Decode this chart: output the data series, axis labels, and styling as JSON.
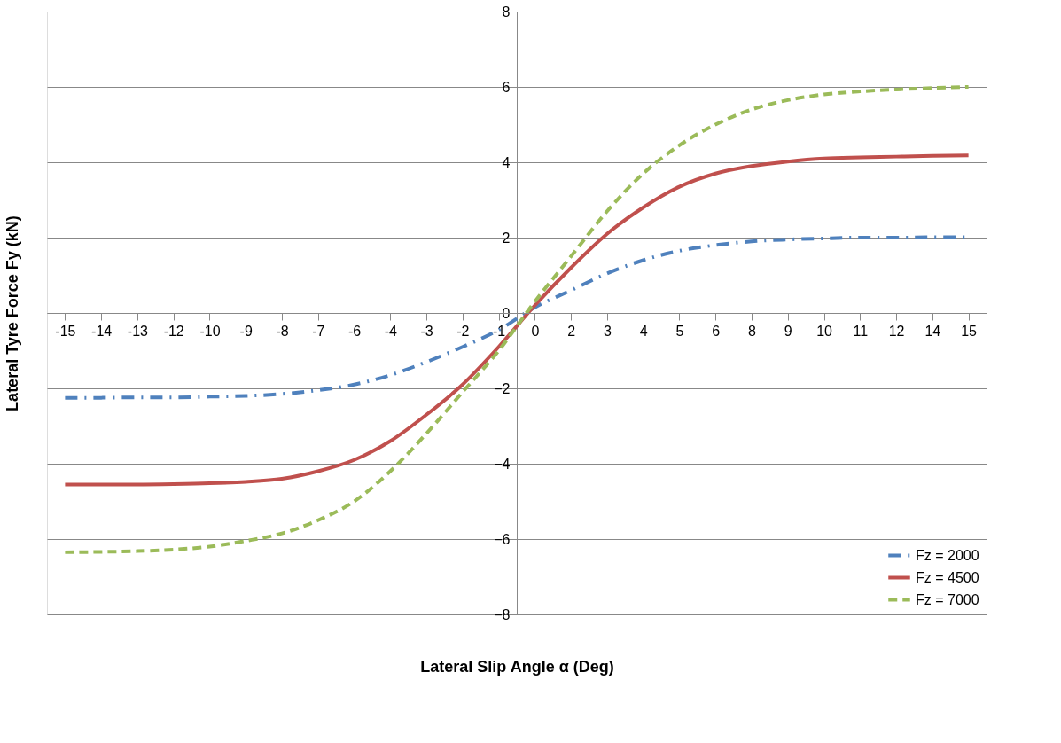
{
  "chart_data": {
    "type": "line",
    "xlabel": "Lateral Slip Angle α (Deg)",
    "ylabel": "Lateral Tyre Force Fy (kN)",
    "categories": [
      "-15",
      "-14",
      "-13",
      "-12",
      "-10",
      "-9",
      "-8",
      "-7",
      "-6",
      "-4",
      "-3",
      "-2",
      "-1",
      "0",
      "2",
      "3",
      "4",
      "5",
      "6",
      "8",
      "9",
      "10",
      "11",
      "12",
      "14",
      "15"
    ],
    "series": [
      {
        "name": "Fz = 2000",
        "color": "#4f81bd",
        "line_style": "dashdot",
        "values": [
          -2.25,
          -2.25,
          -2.24,
          -2.24,
          -2.22,
          -2.2,
          -2.15,
          -2.05,
          -1.9,
          -1.65,
          -1.3,
          -0.9,
          -0.45,
          0.15,
          0.6,
          1.05,
          1.4,
          1.65,
          1.8,
          1.9,
          1.95,
          1.98,
          2.0,
          2.0,
          2.01,
          2.01
        ]
      },
      {
        "name": "Fz = 4500",
        "color": "#c0504d",
        "line_style": "solid",
        "values": [
          -4.55,
          -4.55,
          -4.55,
          -4.54,
          -4.52,
          -4.48,
          -4.4,
          -4.2,
          -3.9,
          -3.4,
          -2.7,
          -1.9,
          -0.9,
          0.2,
          1.2,
          2.1,
          2.8,
          3.35,
          3.7,
          3.9,
          4.02,
          4.1,
          4.13,
          4.15,
          4.17,
          4.18
        ]
      },
      {
        "name": "Fz = 7000",
        "color": "#9bbb59",
        "line_style": "dashed",
        "values": [
          -6.35,
          -6.34,
          -6.32,
          -6.28,
          -6.2,
          -6.05,
          -5.85,
          -5.5,
          -5.0,
          -4.2,
          -3.2,
          -2.1,
          -1.0,
          0.3,
          1.5,
          2.7,
          3.7,
          4.45,
          5.0,
          5.4,
          5.65,
          5.8,
          5.88,
          5.93,
          5.97,
          6.0
        ]
      }
    ],
    "ylim": [
      -8,
      8
    ],
    "yticks": [
      -8,
      -6,
      -4,
      -2,
      0,
      2,
      4,
      6,
      8
    ],
    "grid": "y",
    "legend": "bottom right",
    "marker": "none"
  }
}
